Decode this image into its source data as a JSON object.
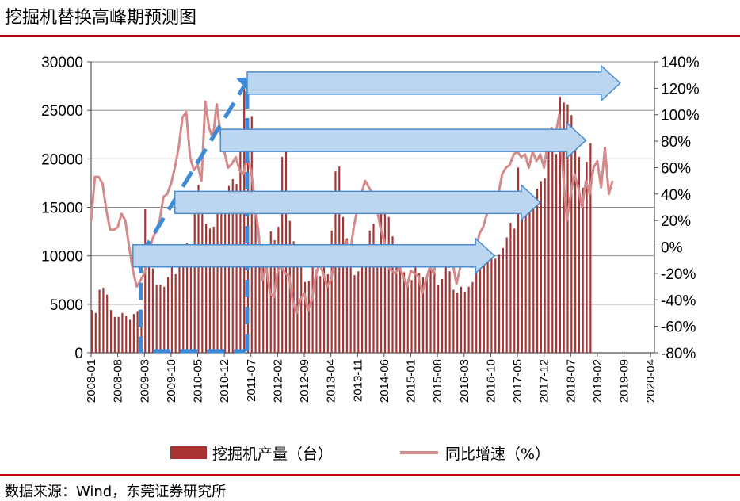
{
  "title": "挖掘机替换高峰期预测图",
  "source": "数据来源：Wind，东莞证券研究所",
  "colors": {
    "bar": "#a63232",
    "line": "#d48a8a",
    "arrow_fill": "#bcd6f0",
    "arrow_stroke": "#4a8ccc",
    "dash": "#3c8ad8",
    "rule": "#c0000f"
  },
  "chart_data": {
    "type": "bar+line",
    "y_left": {
      "min": 0,
      "max": 30000,
      "ticks": [
        "0",
        "5000",
        "10000",
        "15000",
        "20000",
        "25000",
        "30000"
      ]
    },
    "y_right": {
      "min": -80,
      "max": 140,
      "ticks": [
        "-80%",
        "-60%",
        "-40%",
        "-20%",
        "0%",
        "20%",
        "40%",
        "60%",
        "80%",
        "100%",
        "120%",
        "140%"
      ]
    },
    "x_ticks": [
      "2008-01",
      "2008-08",
      "2009-03",
      "2009-10",
      "2010-05",
      "2010-12",
      "2011-07",
      "2012-02",
      "2012-09",
      "2013-04",
      "2013-11",
      "2014-06",
      "2015-01",
      "2015-08",
      "2016-03",
      "2016-10",
      "2017-05",
      "2017-12",
      "2018-07",
      "2019-02",
      "2019-09",
      "2020-04"
    ],
    "x_month_range": [
      0,
      148
    ],
    "bar_series": {
      "name": "挖掘机产量（台）",
      "start": "2008-01",
      "values": [
        4400,
        4100,
        6500,
        6700,
        6000,
        4400,
        3700,
        3700,
        4100,
        3800,
        3400,
        4000,
        4300,
        3500,
        14800,
        10200,
        8700,
        7000,
        7000,
        6800,
        7800,
        9300,
        8100,
        10100,
        10100,
        11300,
        11000,
        16700,
        17300,
        15300,
        13300,
        12800,
        13000,
        14900,
        16200,
        16500,
        17200,
        17900,
        17400,
        22000,
        27500,
        24000,
        24400,
        16000,
        12000,
        10000,
        10500,
        12500,
        11600,
        13000,
        20200,
        22000,
        13600,
        11500,
        11000,
        8900,
        7300,
        7400,
        8900,
        8600,
        7900,
        9000,
        8100,
        12600,
        18700,
        19200,
        14000,
        11800,
        10000,
        8000,
        8400,
        10000,
        10500,
        12600,
        13300,
        11000,
        14400,
        14800,
        14000,
        12000,
        9100,
        9600,
        8300,
        7100,
        7500,
        9400,
        8200,
        7800,
        7700,
        9800,
        8400,
        7000,
        7600,
        10800,
        8400,
        6500,
        6200,
        6800,
        6300,
        6800,
        7300,
        9200,
        10800,
        10800,
        9900,
        9800,
        9700,
        10100,
        10800,
        11900,
        13400,
        12800,
        19100,
        17300,
        15400,
        15900,
        15600,
        16900,
        17700,
        18000,
        21100,
        22900,
        20500,
        26400,
        25800,
        25600,
        24500,
        21800,
        20200,
        17000,
        19700,
        21600
      ],
      "value_labels": false
    },
    "line_series": {
      "name": "同比增速（%）",
      "start": "2008-01",
      "values": [
        20,
        53,
        53,
        48,
        28,
        13,
        13,
        15,
        25,
        20,
        0,
        -18,
        -30,
        -25,
        -20,
        -8,
        5,
        12,
        20,
        38,
        40,
        48,
        60,
        75,
        98,
        102,
        68,
        58,
        62,
        50,
        110,
        90,
        82,
        108,
        86,
        72,
        60,
        63,
        68,
        58,
        55,
        68,
        58,
        35,
        10,
        -25,
        -15,
        -35,
        -38,
        -18,
        -15,
        -20,
        -22,
        -42,
        -50,
        -40,
        -35,
        -48,
        -40,
        -22,
        -12,
        -20,
        -30,
        -25,
        -10,
        -15,
        -5,
        5,
        -5,
        15,
        30,
        40,
        50,
        45,
        40,
        30,
        15,
        5,
        -15,
        -18,
        -20,
        -15,
        -22,
        -30,
        -18,
        -20,
        -22,
        -35,
        -25,
        -15,
        -20,
        -5,
        -5,
        -10,
        -15,
        -12,
        -28,
        -15,
        -8,
        -10,
        -15,
        -5,
        10,
        15,
        25,
        30,
        35,
        40,
        55,
        60,
        62,
        70,
        72,
        68,
        70,
        60,
        72,
        65,
        70,
        60,
        80,
        90,
        85,
        100,
        55,
        20,
        40,
        55,
        45,
        30,
        50,
        40,
        60,
        65,
        45,
        75,
        40,
        50
      ]
    },
    "annotations": {
      "dash_arrow_start_month": 13,
      "dash_arrow_end_month": 41,
      "arrows": [
        {
          "from_month": 41,
          "to_month": 139,
          "y_left": 27800
        },
        {
          "from_month": 34,
          "to_month": 130,
          "y_left": 21900
        },
        {
          "from_month": 22,
          "to_month": 118,
          "y_left": 15500
        },
        {
          "from_month": 11,
          "to_month": 106,
          "y_left": 10000
        }
      ]
    },
    "legend": [
      {
        "type": "bar",
        "label": "挖掘机产量（台）"
      },
      {
        "type": "line",
        "label": "同比增速（%）"
      }
    ],
    "legend_position": "bottom"
  }
}
